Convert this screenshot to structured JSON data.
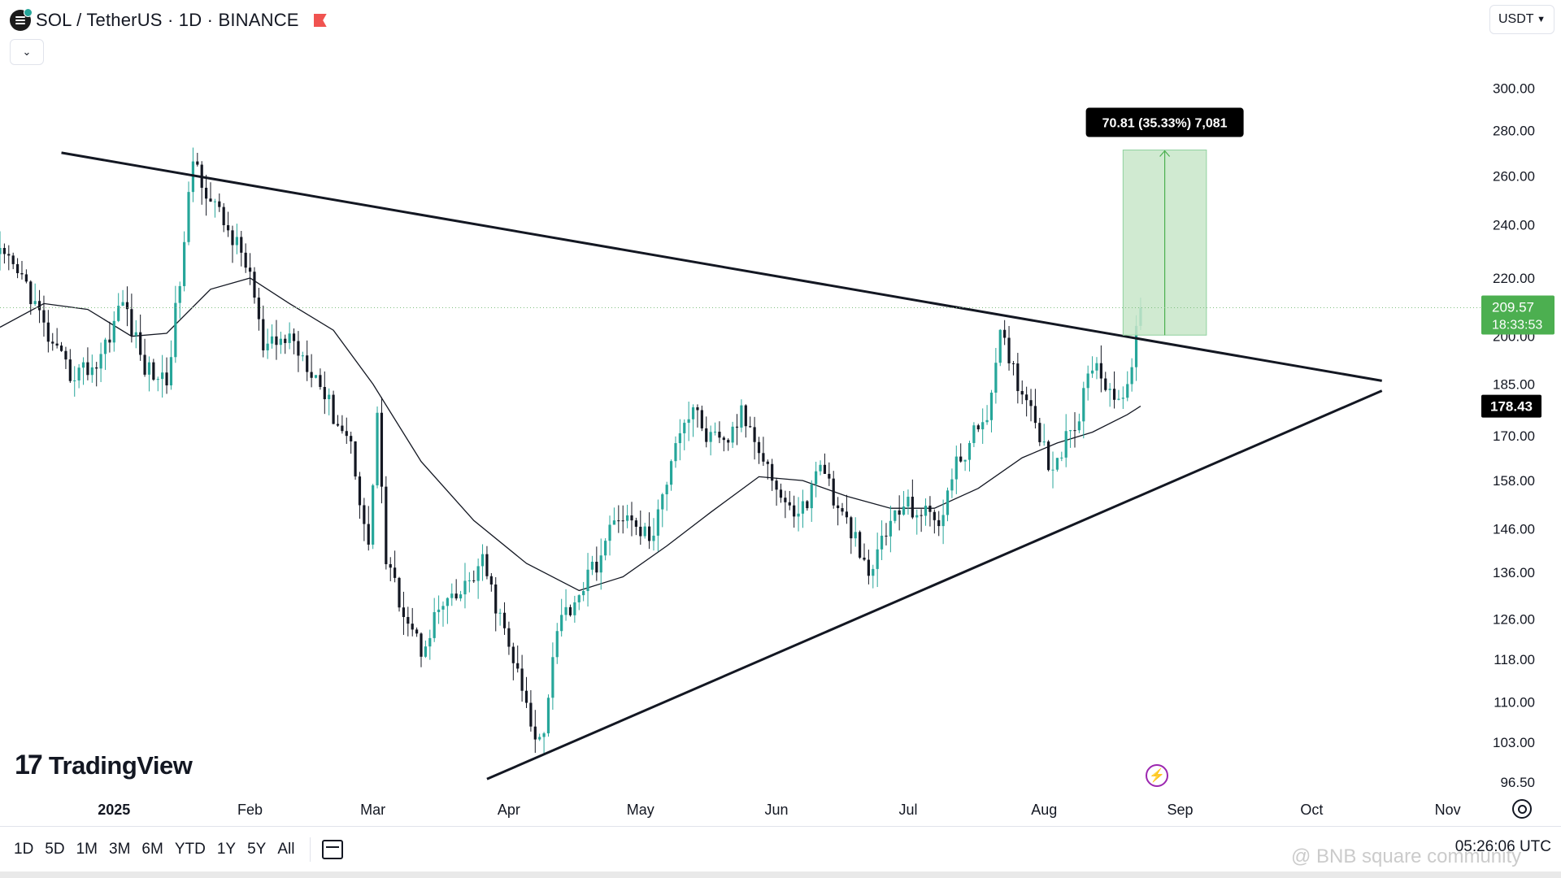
{
  "header": {
    "title": "SOL / TetherUS · 1D · BINANCE"
  },
  "currency_select": {
    "value": "USDT"
  },
  "logo": {
    "text": "TradingView"
  },
  "ranges": [
    "1D",
    "5D",
    "1M",
    "3M",
    "6M",
    "YTD",
    "1Y",
    "5Y",
    "All"
  ],
  "clock": "05:26:06 UTC",
  "watermark": "@ BNB square community",
  "colors": {
    "up": "#26a69a",
    "down": "#131722",
    "measure_fill": "#c8e6c9",
    "measure_edge": "#4caf50",
    "price_tag": "#4caf50"
  },
  "chart_data": {
    "type": "candlestick",
    "symbol": "SOL / TetherUS",
    "interval": "1D",
    "exchange": "BINANCE",
    "ylim": [
      93,
      320
    ],
    "y_scale": "log",
    "xlim": [
      "2024-12-06",
      "2025-11-12"
    ],
    "y_ticks": [
      "300.00",
      "280.00",
      "260.00",
      "240.00",
      "220.00",
      "200.00",
      "185.00",
      "170.00",
      "158.00",
      "146.00",
      "136.00",
      "126.00",
      "118.00",
      "110.00",
      "103.00",
      "96.50"
    ],
    "x_ticks": [
      {
        "date": "2025-01-01",
        "label": "2025"
      },
      {
        "date": "2025-02-01",
        "label": "Feb"
      },
      {
        "date": "2025-03-01",
        "label": "Mar"
      },
      {
        "date": "2025-04-01",
        "label": "Apr"
      },
      {
        "date": "2025-05-01",
        "label": "May"
      },
      {
        "date": "2025-06-01",
        "label": "Jun"
      },
      {
        "date": "2025-07-01",
        "label": "Jul"
      },
      {
        "date": "2025-08-01",
        "label": "Aug"
      },
      {
        "date": "2025-09-01",
        "label": "Sep"
      },
      {
        "date": "2025-10-01",
        "label": "Oct"
      },
      {
        "date": "2025-11-01",
        "label": "Nov"
      }
    ],
    "price_path": [
      [
        "2024-12-06",
        228
      ],
      [
        "2024-12-12",
        218
      ],
      [
        "2024-12-18",
        196
      ],
      [
        "2024-12-22",
        188
      ],
      [
        "2024-12-28",
        191
      ],
      [
        "2025-01-03",
        212
      ],
      [
        "2025-01-08",
        190
      ],
      [
        "2025-01-13",
        186
      ],
      [
        "2025-01-17",
        232
      ],
      [
        "2025-01-19",
        268
      ],
      [
        "2025-01-23",
        250
      ],
      [
        "2025-01-28",
        235
      ],
      [
        "2025-02-01",
        222
      ],
      [
        "2025-02-04",
        195
      ],
      [
        "2025-02-10",
        200
      ],
      [
        "2025-02-16",
        188
      ],
      [
        "2025-02-20",
        176
      ],
      [
        "2025-02-24",
        168
      ],
      [
        "2025-02-28",
        141
      ],
      [
        "2025-03-02",
        177
      ],
      [
        "2025-03-04",
        138
      ],
      [
        "2025-03-08",
        128
      ],
      [
        "2025-03-12",
        120
      ],
      [
        "2025-03-16",
        128
      ],
      [
        "2025-03-20",
        130
      ],
      [
        "2025-03-26",
        138
      ],
      [
        "2025-03-30",
        126
      ],
      [
        "2025-04-03",
        115
      ],
      [
        "2025-04-07",
        103
      ],
      [
        "2025-04-09",
        106
      ],
      [
        "2025-04-12",
        125
      ],
      [
        "2025-04-16",
        130
      ],
      [
        "2025-04-22",
        140
      ],
      [
        "2025-04-26",
        150
      ],
      [
        "2025-04-30",
        146
      ],
      [
        "2025-05-04",
        144
      ],
      [
        "2025-05-09",
        170
      ],
      [
        "2025-05-13",
        178
      ],
      [
        "2025-05-16",
        170
      ],
      [
        "2025-05-20",
        167
      ],
      [
        "2025-05-24",
        176
      ],
      [
        "2025-05-28",
        168
      ],
      [
        "2025-06-01",
        156
      ],
      [
        "2025-06-04",
        150
      ],
      [
        "2025-06-08",
        152
      ],
      [
        "2025-06-11",
        164
      ],
      [
        "2025-06-15",
        150
      ],
      [
        "2025-06-18",
        146
      ],
      [
        "2025-06-22",
        134
      ],
      [
        "2025-06-25",
        144
      ],
      [
        "2025-06-30",
        152
      ],
      [
        "2025-07-04",
        150
      ],
      [
        "2025-07-08",
        148
      ],
      [
        "2025-07-12",
        162
      ],
      [
        "2025-07-16",
        170
      ],
      [
        "2025-07-20",
        180
      ],
      [
        "2025-07-22",
        200
      ],
      [
        "2025-07-26",
        186
      ],
      [
        "2025-07-30",
        176
      ],
      [
        "2025-08-02",
        162
      ],
      [
        "2025-08-05",
        166
      ],
      [
        "2025-08-09",
        176
      ],
      [
        "2025-08-12",
        192
      ],
      [
        "2025-08-15",
        186
      ],
      [
        "2025-08-18",
        180
      ],
      [
        "2025-08-20",
        182
      ],
      [
        "2025-08-22",
        205
      ],
      [
        "2025-08-23",
        209.57
      ]
    ],
    "ma_line": [
      [
        "2024-12-06",
        203
      ],
      [
        "2024-12-16",
        211
      ],
      [
        "2024-12-26",
        209
      ],
      [
        "2025-01-05",
        200
      ],
      [
        "2025-01-13",
        201
      ],
      [
        "2025-01-23",
        216
      ],
      [
        "2025-02-01",
        220
      ],
      [
        "2025-02-10",
        211
      ],
      [
        "2025-02-20",
        202
      ],
      [
        "2025-03-01",
        185
      ],
      [
        "2025-03-12",
        163
      ],
      [
        "2025-03-24",
        148
      ],
      [
        "2025-04-05",
        138
      ],
      [
        "2025-04-17",
        132
      ],
      [
        "2025-04-27",
        135
      ],
      [
        "2025-05-07",
        142
      ],
      [
        "2025-05-17",
        150
      ],
      [
        "2025-05-28",
        159
      ],
      [
        "2025-06-07",
        158
      ],
      [
        "2025-06-17",
        154
      ],
      [
        "2025-06-27",
        151
      ],
      [
        "2025-07-07",
        151
      ],
      [
        "2025-07-17",
        156
      ],
      [
        "2025-07-27",
        164
      ],
      [
        "2025-08-04",
        168
      ],
      [
        "2025-08-12",
        171
      ],
      [
        "2025-08-20",
        176
      ],
      [
        "2025-08-23",
        178.43
      ]
    ],
    "trendlines": [
      {
        "name": "resistance",
        "from": [
          "2024-12-20",
          270
        ],
        "to": [
          "2025-10-17",
          186
        ]
      },
      {
        "name": "support",
        "from": [
          "2025-03-27",
          97
        ],
        "to": [
          "2025-10-17",
          183
        ]
      }
    ],
    "measure": {
      "label": "70.81 (35.33%) 7,081",
      "from_date": "2025-08-19",
      "to_date": "2025-09-07",
      "low": 200.4,
      "high": 271.2
    },
    "current_price": {
      "label": "209.57",
      "value": 209.57,
      "countdown": "18:33:53"
    },
    "ma_label": {
      "label": "178.43",
      "value": 178.43
    }
  }
}
